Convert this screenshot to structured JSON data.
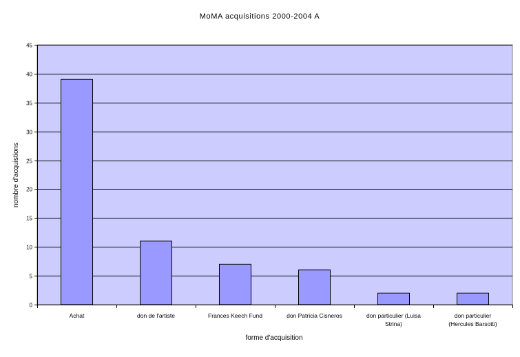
{
  "chart_data": {
    "type": "bar",
    "title": "MoMA acquisitions 2000-2004 A",
    "xlabel": "forme d'acquisition",
    "ylabel": "nombre d'acquistions",
    "categories": [
      [
        "Achat"
      ],
      [
        "don de l'artiste"
      ],
      [
        "Frances Keech Fund"
      ],
      [
        "don Patricia Cisneros"
      ],
      [
        "don particulier (Luisa",
        "Strina)"
      ],
      [
        "don particulier",
        "(Hercules Barsotti)"
      ]
    ],
    "values": [
      39,
      11,
      7,
      6,
      2,
      2
    ],
    "ylim": [
      0,
      45
    ],
    "yticks": [
      "0",
      "5",
      "10",
      "15",
      "20",
      "25",
      "30",
      "35",
      "40",
      "45"
    ],
    "ytick_values": [
      0,
      5,
      10,
      15,
      20,
      25,
      30,
      35,
      40,
      45
    ],
    "grid": true,
    "colors": {
      "plot_background": "#CCCCFF",
      "bar_fill": "#9999FF",
      "bar_stroke": "#000000",
      "gridline": "#000000"
    }
  }
}
